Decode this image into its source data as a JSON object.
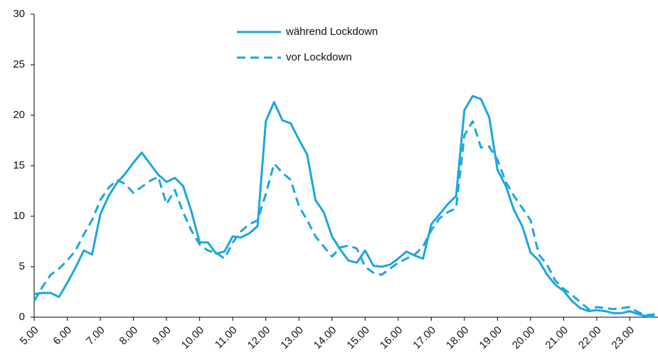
{
  "chart_data": {
    "type": "line",
    "x": [
      5,
      5.25,
      5.5,
      5.75,
      6,
      6.25,
      6.5,
      6.75,
      7,
      7.25,
      7.5,
      7.75,
      8,
      8.25,
      8.5,
      8.75,
      9,
      9.25,
      9.5,
      9.75,
      10,
      10.25,
      10.5,
      10.75,
      11,
      11.25,
      11.5,
      11.75,
      12,
      12.25,
      12.5,
      12.75,
      13,
      13.25,
      13.5,
      13.75,
      14,
      14.25,
      14.5,
      14.75,
      15,
      15.25,
      15.5,
      15.75,
      16,
      16.25,
      16.5,
      16.75,
      17,
      17.25,
      17.5,
      17.75,
      18,
      18.25,
      18.5,
      18.75,
      19,
      19.25,
      19.5,
      19.75,
      20,
      20.25,
      20.5,
      20.75,
      21,
      21.25,
      21.5,
      21.75,
      22,
      22.25,
      22.5,
      22.75,
      23,
      23.25,
      23.5,
      23.75
    ],
    "series": [
      {
        "name": "während Lockdown",
        "color": "#1ba6df",
        "line_style": "solid",
        "values": [
          2.3,
          2.4,
          2.4,
          2.0,
          3.4,
          4.9,
          6.6,
          6.2,
          10.2,
          12.0,
          13.3,
          14.2,
          15.3,
          16.3,
          15.2,
          14.1,
          13.4,
          13.8,
          13.0,
          10.5,
          7.4,
          7.4,
          6.3,
          6.5,
          8.0,
          7.9,
          8.3,
          9.0,
          19.4,
          21.3,
          19.5,
          19.2,
          17.6,
          16.1,
          11.6,
          10.4,
          8.0,
          6.7,
          5.6,
          5.4,
          6.6,
          5.1,
          5.0,
          5.2,
          5.8,
          6.5,
          6.1,
          5.8,
          9.2,
          10.2,
          11.2,
          12.0,
          20.5,
          21.9,
          21.6,
          19.8,
          14.6,
          13.0,
          10.6,
          9.0,
          6.4,
          5.6,
          4.2,
          3.2,
          2.6,
          1.6,
          0.9,
          0.6,
          0.7,
          0.6,
          0.4,
          0.4,
          0.6,
          0.3,
          0.1,
          0.1
        ]
      },
      {
        "name": "vor Lockdown",
        "color": "#1ba6df",
        "line_style": "dashed",
        "values": [
          1.6,
          3.0,
          4.2,
          4.8,
          5.6,
          6.6,
          8.2,
          9.6,
          11.6,
          12.8,
          13.6,
          13.2,
          12.3,
          12.9,
          13.5,
          13.9,
          11.2,
          12.6,
          10.4,
          8.6,
          7.2,
          6.6,
          6.4,
          5.8,
          7.4,
          8.5,
          9.2,
          9.6,
          12.2,
          15.2,
          14.3,
          13.6,
          11.0,
          9.6,
          8.0,
          7.0,
          6.0,
          6.9,
          7.1,
          6.8,
          5.0,
          4.4,
          4.2,
          4.8,
          5.4,
          5.8,
          6.2,
          7.0,
          8.6,
          9.8,
          10.4,
          10.8,
          18.0,
          19.4,
          16.8,
          16.9,
          15.6,
          13.4,
          12.0,
          10.8,
          9.6,
          6.2,
          5.2,
          3.6,
          2.8,
          2.2,
          1.5,
          0.8,
          1.0,
          0.9,
          0.8,
          0.9,
          1.0,
          0.5,
          0.2,
          0.3
        ]
      }
    ],
    "xlim": [
      5,
      23.85
    ],
    "xticks": [
      {
        "value": 5,
        "label": "5.00"
      },
      {
        "value": 6,
        "label": "6.00"
      },
      {
        "value": 7,
        "label": "7.00"
      },
      {
        "value": 8,
        "label": "8.00"
      },
      {
        "value": 9,
        "label": "9.00"
      },
      {
        "value": 10,
        "label": "10.00"
      },
      {
        "value": 11,
        "label": "11.00"
      },
      {
        "value": 12,
        "label": "12.00"
      },
      {
        "value": 13,
        "label": "13.00"
      },
      {
        "value": 14,
        "label": "14.00"
      },
      {
        "value": 15,
        "label": "15.00"
      },
      {
        "value": 16,
        "label": "16.00"
      },
      {
        "value": 17,
        "label": "17.00"
      },
      {
        "value": 18,
        "label": "18.00"
      },
      {
        "value": 19,
        "label": "19.00"
      },
      {
        "value": 20,
        "label": "20.00"
      },
      {
        "value": 21,
        "label": "21.00"
      },
      {
        "value": 22,
        "label": "22.00"
      },
      {
        "value": 23,
        "label": "23.00"
      }
    ],
    "ylim": [
      0,
      30
    ],
    "yticks": [
      0,
      5,
      10,
      15,
      20,
      25,
      30
    ],
    "grid": false
  }
}
